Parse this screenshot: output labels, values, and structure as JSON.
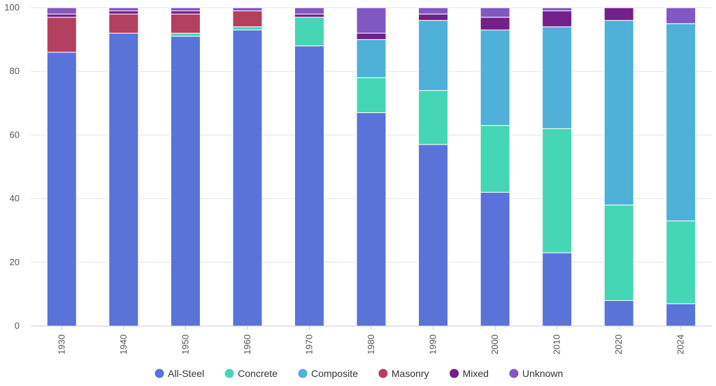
{
  "chart_data": {
    "type": "bar",
    "stacked": true,
    "categories": [
      "1930",
      "1940",
      "1950",
      "1960",
      "1970",
      "1980",
      "1990",
      "2000",
      "2010",
      "2020",
      "2024"
    ],
    "ylim": [
      0,
      100
    ],
    "yticks": [
      0,
      20,
      40,
      60,
      80,
      100
    ],
    "grid": true,
    "legend_position": "bottom",
    "series": [
      {
        "name": "All-Steel",
        "color": "#5a73d9",
        "values": [
          86,
          92,
          91,
          93,
          88,
          67,
          57,
          42,
          23,
          8,
          7
        ]
      },
      {
        "name": "Concrete",
        "color": "#45d6b5",
        "values": [
          0,
          0,
          1,
          1,
          9,
          11,
          17,
          21,
          39,
          30,
          26
        ]
      },
      {
        "name": "Composite",
        "color": "#4fb0d8",
        "values": [
          0,
          0,
          0,
          0,
          0,
          12,
          22,
          30,
          32,
          58,
          62
        ]
      },
      {
        "name": "Masonry",
        "color": "#b3405f",
        "values": [
          11,
          6,
          6,
          5,
          0,
          0,
          0,
          0,
          0,
          0,
          0
        ]
      },
      {
        "name": "Mixed",
        "color": "#751f8a",
        "values": [
          1,
          1,
          1,
          0,
          1,
          2,
          2,
          4,
          5,
          4,
          0
        ]
      },
      {
        "name": "Unknown",
        "color": "#8157c2",
        "values": [
          2,
          1,
          1,
          1,
          2,
          8,
          2,
          3,
          1,
          0,
          5
        ]
      }
    ]
  }
}
